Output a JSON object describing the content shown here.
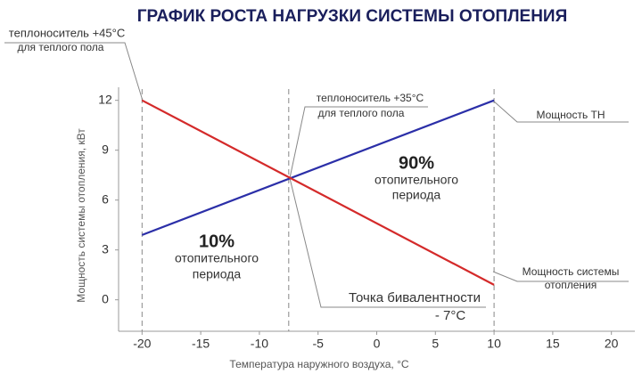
{
  "chart_data": {
    "type": "line",
    "title": "ГРАФИК РОСТА НАГРУЗКИ СИСТЕМЫ ОТОПЛЕНИЯ",
    "x_label": "Температура наружного воздуха, °С",
    "y_label": "Мощность системы отопления, кВт",
    "x": [
      -20,
      10
    ],
    "series": [
      {
        "name": "Мощность ТН",
        "color": "#2b2fa8",
        "values": [
          3.9,
          12
        ]
      },
      {
        "name": "Мощность системы отопления",
        "color": "#d42a2a",
        "values": [
          12,
          0.9
        ]
      }
    ],
    "xlim": [
      -22,
      22
    ],
    "ylim": [
      -2,
      13
    ],
    "xticks": [
      -20,
      -15,
      -10,
      -5,
      0,
      5,
      10,
      15,
      20
    ],
    "yticks": [
      0,
      3,
      6,
      9,
      12
    ],
    "reference_lines_x": [
      -20,
      -7.5,
      10
    ],
    "annotations": [
      {
        "lines": [
          "теплоноситель +45°С",
          "для теплого пола"
        ]
      },
      {
        "lines": [
          "теплоноситель +35°С",
          "для теплого пола"
        ]
      },
      {
        "lines": [
          "10%",
          "отопительного",
          "периода"
        ]
      },
      {
        "lines": [
          "90%",
          "отопительного",
          "периода"
        ]
      },
      {
        "lines": [
          "Точка бивалентности",
          "- 7°С"
        ]
      }
    ]
  }
}
